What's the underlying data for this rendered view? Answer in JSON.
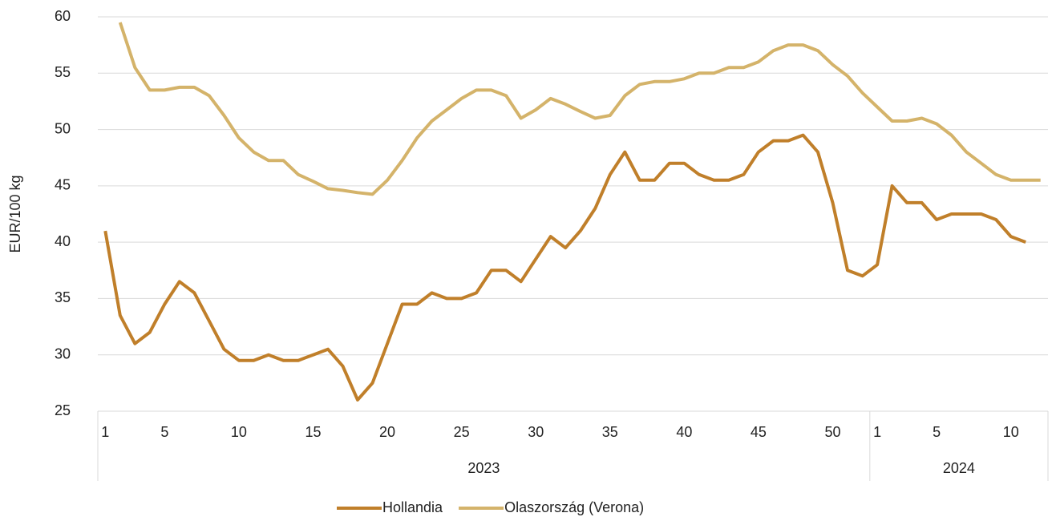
{
  "chart_data": {
    "type": "line",
    "y_label": "EUR/100 kg",
    "categories": [
      "1",
      null,
      null,
      null,
      "5",
      null,
      null,
      null,
      null,
      "10",
      null,
      null,
      null,
      null,
      "15",
      null,
      null,
      null,
      null,
      "20",
      null,
      null,
      null,
      null,
      "25",
      null,
      null,
      null,
      null,
      "30",
      null,
      null,
      null,
      null,
      "35",
      null,
      null,
      null,
      null,
      "40",
      null,
      null,
      null,
      null,
      "45",
      null,
      null,
      null,
      null,
      "50",
      null,
      null,
      "1",
      null,
      null,
      null,
      "5",
      null,
      null,
      null,
      null,
      "10",
      null,
      null
    ],
    "groups": [
      {
        "name": "2023",
        "span": 52
      },
      {
        "name": "2024",
        "span": 12
      }
    ],
    "series": [
      {
        "name": "Hollandia",
        "color": "#c07f2a",
        "values": [
          41,
          33.5,
          31,
          32,
          34.5,
          36.5,
          35.5,
          33,
          30.5,
          29.5,
          29.5,
          30,
          29.5,
          29.5,
          30,
          30.5,
          29,
          26,
          27.5,
          31,
          34.5,
          34.5,
          35.5,
          35,
          35,
          35.5,
          37.5,
          37.5,
          36.5,
          38.5,
          40.5,
          39.5,
          41,
          43,
          46,
          48,
          45.5,
          45.5,
          47,
          47,
          46,
          45.5,
          45.5,
          46,
          48,
          49,
          49,
          49.5,
          48,
          43.5,
          37.5,
          37,
          38,
          45,
          43.5,
          43.5,
          42,
          42.5,
          42.5,
          42.5,
          42,
          40.5,
          40,
          null
        ]
      },
      {
        "name": "Olaszország (Verona)",
        "color": "#d4b36a",
        "values": [
          null,
          59.5,
          55.5,
          53.5,
          53.5,
          53.75,
          53.75,
          53,
          51.25,
          49.25,
          48,
          47.25,
          47.25,
          46,
          45.4,
          44.75,
          44.6,
          44.4,
          44.25,
          45.5,
          47.25,
          49.25,
          50.75,
          51.75,
          52.75,
          53.5,
          53.5,
          53,
          51,
          51.75,
          52.75,
          52.25,
          51.6,
          51,
          51.25,
          53,
          54,
          54.25,
          54.25,
          54.5,
          55,
          55,
          55.5,
          55.5,
          56,
          57,
          57.5,
          57.5,
          57,
          55.75,
          54.75,
          53.25,
          52,
          50.75,
          50.75,
          51,
          50.5,
          49.5,
          48,
          47,
          46,
          45.5,
          45.5,
          45.5
        ]
      }
    ],
    "ylim": [
      25,
      60
    ],
    "yticks": [
      25,
      30,
      35,
      40,
      45,
      50,
      55,
      60
    ],
    "grid": true
  }
}
